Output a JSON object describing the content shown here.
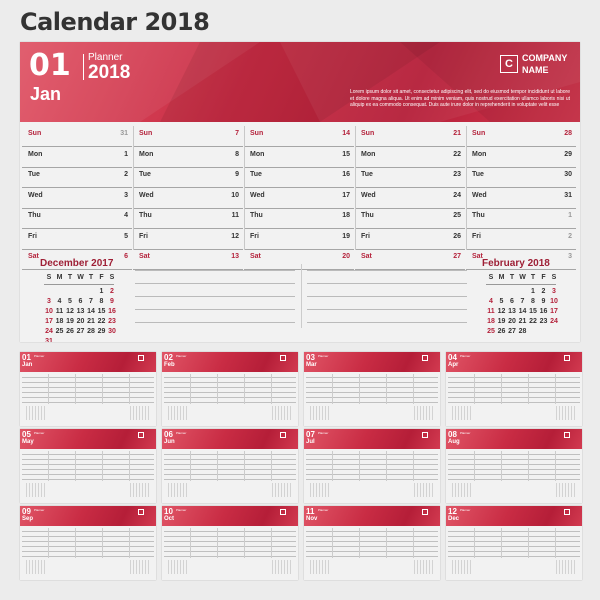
{
  "page": {
    "title": "Calendar 2018"
  },
  "planner": {
    "month_num": "01",
    "month_name": "Jan",
    "planner_label": "Planner",
    "year": "2018",
    "logo_letter": "C",
    "company_line1": "COMPANY",
    "company_line2": "NAME",
    "lorem": "Lorem ipsum dolor sit amet, consectetur adipiscing elit, sed do eiusmod tempor incididunt ut labore et dolore magna aliqua. Ut enim ad minim veniam, quis nostrud exercitation ullamco laboris nisi ut aliquip ex ea commodo consequat. Duis aute irure dolor in reprehenderit in voluptate velit esse",
    "brand_color": "#c0263f",
    "weeks": [
      [
        [
          "Sun",
          "31"
        ],
        [
          "Mon",
          "1"
        ],
        [
          "Tue",
          "2"
        ],
        [
          "Wed",
          "3"
        ],
        [
          "Thu",
          "4"
        ],
        [
          "Fri",
          "5"
        ],
        [
          "Sat",
          "6"
        ]
      ],
      [
        [
          "Sun",
          "7"
        ],
        [
          "Mon",
          "8"
        ],
        [
          "Tue",
          "9"
        ],
        [
          "Wed",
          "10"
        ],
        [
          "Thu",
          "11"
        ],
        [
          "Fri",
          "12"
        ],
        [
          "Sat",
          "13"
        ]
      ],
      [
        [
          "Sun",
          "14"
        ],
        [
          "Mon",
          "15"
        ],
        [
          "Tue",
          "16"
        ],
        [
          "Wed",
          "17"
        ],
        [
          "Thu",
          "18"
        ],
        [
          "Fri",
          "19"
        ],
        [
          "Sat",
          "20"
        ]
      ],
      [
        [
          "Sun",
          "21"
        ],
        [
          "Mon",
          "22"
        ],
        [
          "Tue",
          "23"
        ],
        [
          "Wed",
          "24"
        ],
        [
          "Thu",
          "25"
        ],
        [
          "Fri",
          "26"
        ],
        [
          "Sat",
          "27"
        ]
      ],
      [
        [
          "Sun",
          "28"
        ],
        [
          "Mon",
          "29"
        ],
        [
          "Tue",
          "30"
        ],
        [
          "Wed",
          "31"
        ],
        [
          "Thu",
          "1"
        ],
        [
          "Fri",
          "2"
        ],
        [
          "Sat",
          "3"
        ]
      ]
    ],
    "prev_month": {
      "title": "December 2017",
      "headers": [
        "S",
        "M",
        "T",
        "W",
        "T",
        "F",
        "S"
      ],
      "rows": [
        [
          "",
          "",
          "",
          "",
          "",
          "1",
          "2"
        ],
        [
          "3",
          "4",
          "5",
          "6",
          "7",
          "8",
          "9"
        ],
        [
          "10",
          "11",
          "12",
          "13",
          "14",
          "15",
          "16"
        ],
        [
          "17",
          "18",
          "19",
          "20",
          "21",
          "22",
          "23"
        ],
        [
          "24",
          "25",
          "26",
          "27",
          "28",
          "29",
          "30"
        ],
        [
          "31",
          "",
          "",
          "",
          "",
          "",
          ""
        ]
      ]
    },
    "next_month": {
      "title": "February 2018",
      "headers": [
        "S",
        "M",
        "T",
        "W",
        "T",
        "F",
        "S"
      ],
      "rows": [
        [
          "",
          "",
          "",
          "",
          "1",
          "2",
          "3"
        ],
        [
          "4",
          "5",
          "6",
          "7",
          "8",
          "9",
          "10"
        ],
        [
          "11",
          "12",
          "13",
          "14",
          "15",
          "16",
          "17"
        ],
        [
          "18",
          "19",
          "20",
          "21",
          "22",
          "23",
          "24"
        ],
        [
          "25",
          "26",
          "27",
          "28",
          "",
          "",
          ""
        ]
      ]
    }
  },
  "thumbnails": [
    {
      "num": "01",
      "name": "Jan"
    },
    {
      "num": "02",
      "name": "Feb"
    },
    {
      "num": "03",
      "name": "Mar"
    },
    {
      "num": "04",
      "name": "Apr"
    },
    {
      "num": "05",
      "name": "May"
    },
    {
      "num": "06",
      "name": "Jun"
    },
    {
      "num": "07",
      "name": "Jul"
    },
    {
      "num": "08",
      "name": "Aug"
    },
    {
      "num": "09",
      "name": "Sep"
    },
    {
      "num": "10",
      "name": "Oct"
    },
    {
      "num": "11",
      "name": "Nov"
    },
    {
      "num": "12",
      "name": "Dec"
    }
  ]
}
